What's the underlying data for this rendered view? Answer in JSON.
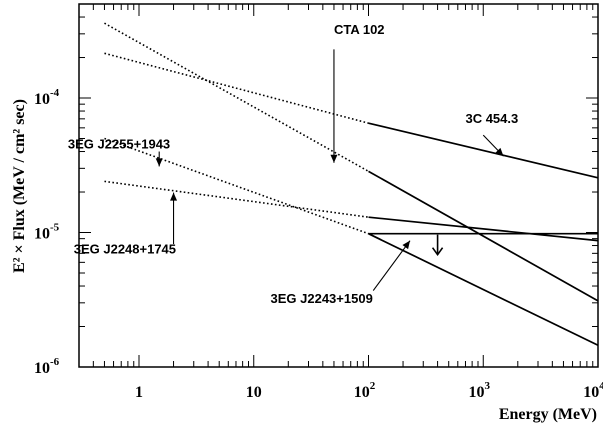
{
  "chart_data": {
    "type": "line",
    "title": "",
    "xlabel": "Energy (MeV)",
    "ylabel": "E² × Flux (MeV / cm² sec)",
    "xscale": "log",
    "yscale": "log",
    "xlim": [
      0.3,
      10000
    ],
    "ylim": [
      1e-06,
      0.0005
    ],
    "x_ticks": [
      {
        "value": 1,
        "base": "1",
        "exp": ""
      },
      {
        "value": 10,
        "base": "10",
        "exp": ""
      },
      {
        "value": 100,
        "base": "10",
        "exp": "2"
      },
      {
        "value": 1000,
        "base": "10",
        "exp": "3"
      },
      {
        "value": 10000,
        "base": "10",
        "exp": "4"
      }
    ],
    "y_ticks": [
      {
        "value": 1e-06,
        "base": "10",
        "exp": "-6"
      },
      {
        "value": 1e-05,
        "base": "10",
        "exp": "-5"
      },
      {
        "value": 0.0001,
        "base": "10",
        "exp": "-4"
      }
    ],
    "series": [
      {
        "name": "3C 454.3",
        "segments": [
          {
            "style": "dotted",
            "x": [
              0.5,
              100
            ],
            "y": [
              0.000215,
              6.5e-05
            ]
          },
          {
            "style": "solid",
            "x": [
              100,
              10000
            ],
            "y": [
              6.5e-05,
              2.55e-05
            ]
          }
        ]
      },
      {
        "name": "CTA 102",
        "segments": [
          {
            "style": "dotted",
            "x": [
              0.5,
              100
            ],
            "y": [
              0.00036,
              2.85e-05
            ]
          },
          {
            "style": "solid",
            "x": [
              100,
              10000
            ],
            "y": [
              2.85e-05,
              3.1e-06
            ]
          }
        ]
      },
      {
        "name": "3EG J2255+1943",
        "segments": [
          {
            "style": "dotted",
            "x": [
              0.5,
              100
            ],
            "y": [
              5e-05,
              9.8e-06
            ]
          },
          {
            "style": "solid",
            "x": [
              100,
              10000
            ],
            "y": [
              9.8e-06,
              1.45e-06
            ]
          }
        ]
      },
      {
        "name": "3EG J2248+1745",
        "segments": [
          {
            "style": "dotted",
            "x": [
              0.5,
              100
            ],
            "y": [
              2.4e-05,
              1.3e-05
            ]
          },
          {
            "style": "solid",
            "x": [
              100,
              10000
            ],
            "y": [
              1.3e-05,
              8.7e-06
            ]
          }
        ]
      },
      {
        "name": "3EG J2243+1509",
        "segments": [
          {
            "style": "solid",
            "x": [
              100,
              10000
            ],
            "y": [
              9.8e-06,
              9.8e-06
            ]
          }
        ],
        "upper_limit_arrow_x": 400
      }
    ],
    "annotations": [
      {
        "text": "CTA 102",
        "label_x": 50,
        "label_y": 0.0003,
        "arrow_from": [
          50,
          0.00023
        ],
        "arrow_to": [
          50,
          3.3e-05
        ]
      },
      {
        "text": "3C 454.3",
        "label_x": 700,
        "label_y": 6.5e-05,
        "arrow_from": [
          1000,
          5.3e-05
        ],
        "arrow_to": [
          1500,
          3.7e-05
        ]
      },
      {
        "text": "3EG J2255+1943",
        "label_x": 0.24,
        "label_y": 4.2e-05,
        "arrow_from": [
          1.5,
          4e-05
        ],
        "arrow_to": [
          1.5,
          3.1e-05
        ]
      },
      {
        "text": "3EG J2248+1745",
        "label_x": 0.27,
        "label_y": 7e-06,
        "arrow_from": [
          2.0,
          8.2e-06
        ],
        "arrow_to": [
          2.0,
          1.98e-05
        ]
      },
      {
        "text": "3EG J2243+1509",
        "label_x": 14,
        "label_y": 3e-06,
        "arrow_from": [
          110,
          3.7e-06
        ],
        "arrow_to": [
          230,
          8.7e-06
        ]
      }
    ]
  }
}
